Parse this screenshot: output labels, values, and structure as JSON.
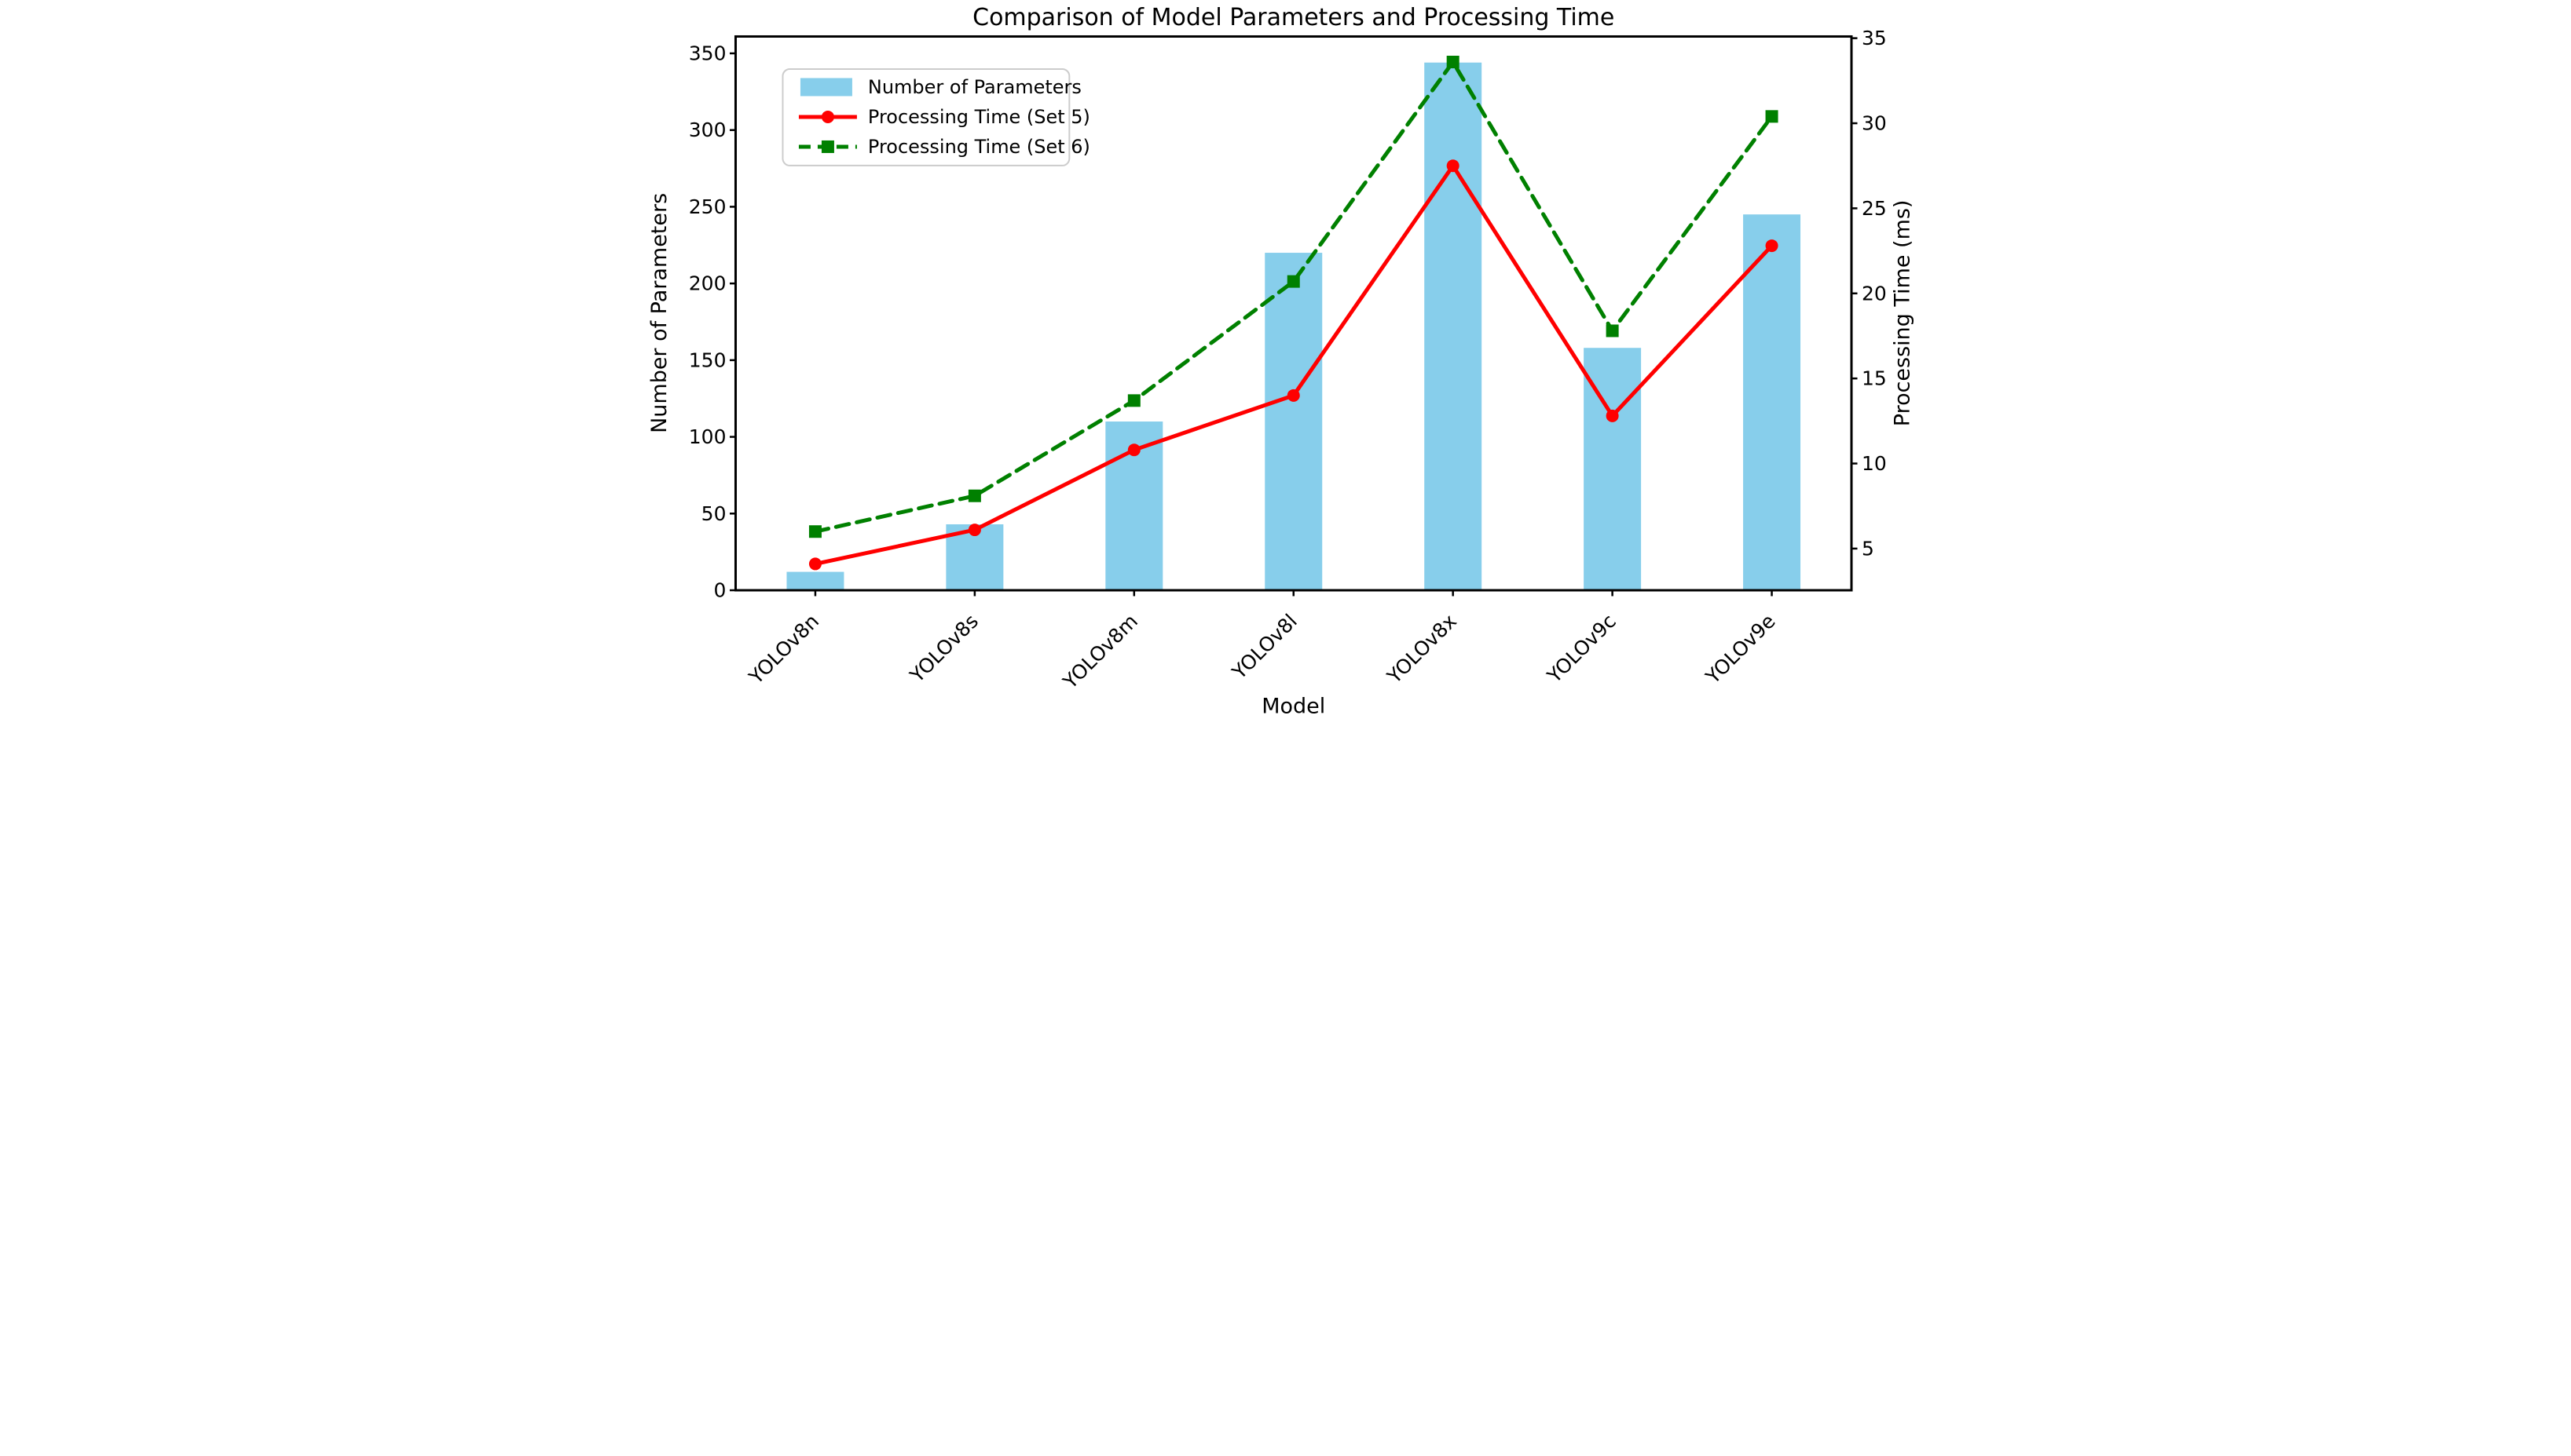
{
  "chart_data": {
    "type": "bar+line",
    "title": "Comparison of Model Parameters and Processing Time",
    "xlabel": "Model",
    "ylabel_left": "Number of Parameters",
    "ylabel_right": "Processing Time (ms)",
    "categories": [
      "YOLOv8n",
      "YOLOv8s",
      "YOLOv8m",
      "YOLOv8l",
      "YOLOv8x",
      "YOLOv9c",
      "YOLOv9e"
    ],
    "bar_series": {
      "name": "Number of Parameters",
      "color": "#87CEEB",
      "values": [
        12,
        43,
        110,
        220,
        344,
        158,
        245
      ]
    },
    "line_series": [
      {
        "name": "Processing Time (Set 5)",
        "color": "#FF0000",
        "style": "solid",
        "marker": "circle",
        "values": [
          4.1,
          6.1,
          10.8,
          14.0,
          27.5,
          12.8,
          22.8
        ]
      },
      {
        "name": "Processing Time (Set 6)",
        "color": "#008000",
        "style": "dashed",
        "marker": "square",
        "values": [
          6.0,
          8.1,
          13.7,
          20.7,
          33.6,
          17.8,
          30.4
        ]
      }
    ],
    "axes": {
      "left": {
        "ticks": [
          0,
          50,
          100,
          150,
          200,
          250,
          300,
          350
        ],
        "lim": [
          0,
          361
        ],
        "tick_color": "#87CEEB"
      },
      "right": {
        "ticks": [
          5,
          10,
          15,
          20,
          25,
          30,
          35
        ],
        "lim": [
          2.55,
          35.1
        ],
        "tick_color": "#000000"
      }
    },
    "legend": {
      "position": "upper-left",
      "border_color": "#CCCCCC"
    },
    "grid": false,
    "x_tick_rotation_deg": 45
  }
}
